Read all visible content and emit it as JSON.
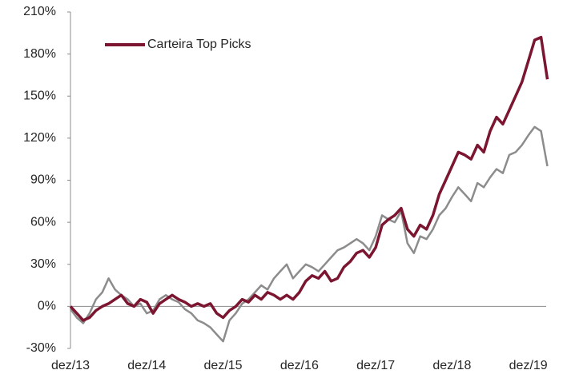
{
  "chart_data": {
    "type": "line",
    "categories": [
      "dez/13",
      null,
      null,
      null,
      null,
      null,
      null,
      null,
      null,
      null,
      null,
      null,
      "dez/14",
      null,
      null,
      null,
      null,
      null,
      null,
      null,
      null,
      null,
      null,
      null,
      "dez/15",
      null,
      null,
      null,
      null,
      null,
      null,
      null,
      null,
      null,
      null,
      null,
      "dez/16",
      null,
      null,
      null,
      null,
      null,
      null,
      null,
      null,
      null,
      null,
      null,
      "dez/17",
      null,
      null,
      null,
      null,
      null,
      null,
      null,
      null,
      null,
      null,
      null,
      "dez/18",
      null,
      null,
      null,
      null,
      null,
      null,
      null,
      null,
      null,
      null,
      null,
      "dez/19",
      null,
      null,
      null
    ],
    "series": [
      {
        "name": "Carteira Top Picks",
        "color": "#7b1530",
        "values": [
          0,
          -5,
          -10,
          -8,
          -3,
          0,
          2,
          5,
          8,
          2,
          0,
          5,
          3,
          -5,
          2,
          5,
          8,
          5,
          3,
          0,
          2,
          0,
          2,
          -5,
          -8,
          -3,
          0,
          5,
          3,
          8,
          5,
          10,
          8,
          5,
          8,
          5,
          10,
          18,
          22,
          20,
          25,
          18,
          20,
          28,
          32,
          38,
          40,
          35,
          42,
          58,
          62,
          65,
          70,
          55,
          50,
          58,
          55,
          65,
          80,
          90,
          100,
          110,
          108,
          105,
          115,
          110,
          125,
          135,
          130,
          140,
          150,
          160,
          175,
          190,
          192,
          162
        ]
      },
      {
        "color": "#8c8c8c",
        "values": [
          -2,
          -8,
          -12,
          -5,
          5,
          10,
          20,
          12,
          8,
          5,
          0,
          2,
          -5,
          -3,
          5,
          8,
          5,
          3,
          -2,
          -5,
          -10,
          -12,
          -15,
          -20,
          -25,
          -10,
          -5,
          2,
          5,
          10,
          15,
          12,
          20,
          25,
          30,
          20,
          25,
          30,
          28,
          25,
          30,
          35,
          40,
          42,
          45,
          48,
          45,
          40,
          50,
          65,
          62,
          60,
          68,
          45,
          38,
          50,
          48,
          55,
          65,
          70,
          78,
          85,
          80,
          75,
          88,
          85,
          92,
          98,
          95,
          108,
          110,
          115,
          122,
          128,
          125,
          100
        ]
      }
    ],
    "ylim": [
      -30,
      210
    ],
    "yticks": [
      {
        "value": -30,
        "label": "-30%"
      },
      {
        "value": 0,
        "label": "0%"
      },
      {
        "value": 30,
        "label": "30%"
      },
      {
        "value": 60,
        "label": "60%"
      },
      {
        "value": 90,
        "label": "90%"
      },
      {
        "value": 120,
        "label": "120%"
      },
      {
        "value": 150,
        "label": "150%"
      },
      {
        "value": 180,
        "label": "180%"
      },
      {
        "value": 210,
        "label": "210%"
      }
    ],
    "legend": "upper left"
  }
}
